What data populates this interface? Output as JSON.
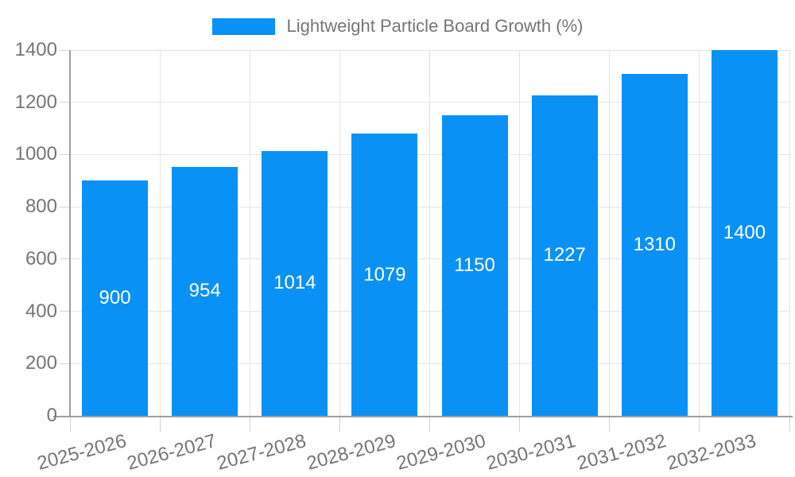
{
  "chart_data": {
    "type": "bar",
    "title": "Lightweight Particle Board Growth (%)",
    "legend_position": "top-center",
    "categories": [
      "2025-2026",
      "2026-2027",
      "2027-2028",
      "2028-2029",
      "2029-2030",
      "2030-2031",
      "2031-2032",
      "2032-2033"
    ],
    "values": [
      900,
      954,
      1014,
      1079,
      1150,
      1227,
      1310,
      1400
    ],
    "value_labels": [
      "900",
      "954",
      "1014",
      "1079",
      "1150",
      "1227",
      "1310",
      "1400"
    ],
    "value_label_position": "inside-center",
    "xlabel": "",
    "ylabel": "",
    "ylim": [
      0,
      1400
    ],
    "ytick_interval": 200,
    "yticks": [
      "0",
      "200",
      "400",
      "600",
      "800",
      "1000",
      "1200",
      "1400"
    ],
    "x_label_rotation_deg": -15,
    "grid": true,
    "colors": {
      "bar": "#0a91f5",
      "bar_value_text": "#ffffff",
      "axis_text": "#757575",
      "axis_line": "#9e9e9e",
      "grid_line": "#e4e4e4",
      "tick_line": "#d2d2d2",
      "background": "#ffffff"
    }
  }
}
